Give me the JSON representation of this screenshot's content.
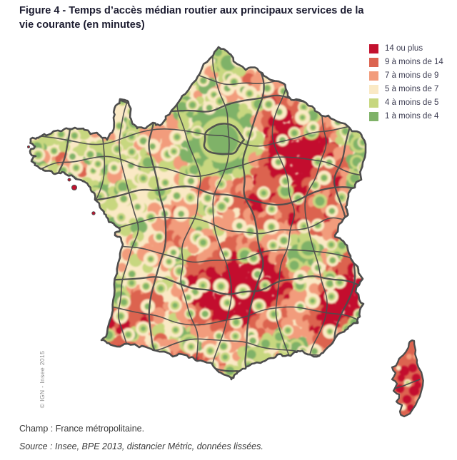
{
  "figure": {
    "title_line1": "Figure 4 - Temps d’accès médian routier aux principaux services de la",
    "title_line2": "vie courante (en minutes)"
  },
  "legend": {
    "items": [
      {
        "label": "14 ou plus",
        "color": "#C3112E"
      },
      {
        "label": "9 à moins de 14",
        "color": "#DC6450"
      },
      {
        "label": "7 à moins de 9",
        "color": "#F29C7C"
      },
      {
        "label": "5 à moins de 7",
        "color": "#FAE9C5"
      },
      {
        "label": "4 à moins de 5",
        "color": "#C7D77F"
      },
      {
        "label": "1 à moins de 4",
        "color": "#7FB268"
      }
    ]
  },
  "map": {
    "copyright": "© IGN - Insee 2015",
    "border_color": "#4D4D4D",
    "base_color": "#FAE9C5",
    "sea_color": "#FFFFFF"
  },
  "footer": {
    "champ": "Champ : France métropolitaine.",
    "source": "Source : Insee, BPE 2013, distancier Métric, données lissées."
  }
}
